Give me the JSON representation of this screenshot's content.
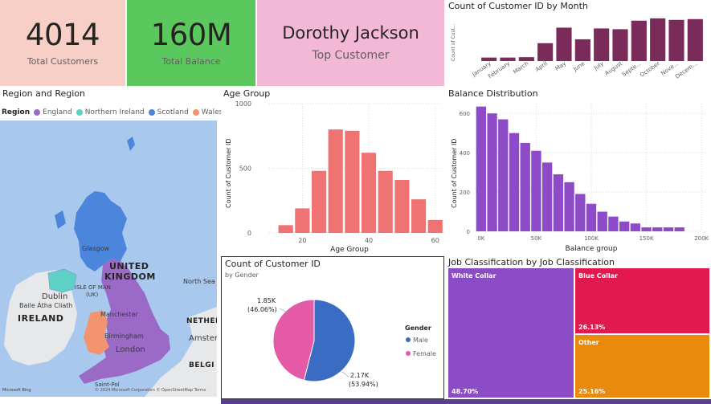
{
  "kpis": {
    "total_customers": {
      "value": "4014",
      "label": "Total Customers"
    },
    "total_balance": {
      "value": "160M",
      "label": "Total Balance"
    },
    "top_customer": {
      "value": "Dorothy Jackson",
      "label": "Top Customer"
    }
  },
  "colors": {
    "kpi1_bg": "#f8cfc6",
    "kpi2_bg": "#5bc85e",
    "kpi3_bg": "#f3b8d6",
    "month_bar": "#7a2b5a",
    "age_bar": "#f07373",
    "balance_bar": "#8e4bc8",
    "pie_male": "#3b6cc4",
    "pie_female": "#e55aa7",
    "treemap_white": "#8b4cc6",
    "treemap_blue": "#e2194f",
    "treemap_other": "#e98a0c",
    "england": "#9b6ac6",
    "northern_ireland": "#5ed1c6",
    "scotland": "#4c86dc",
    "wales": "#f2946f"
  },
  "month_chart": {
    "title": "Count of Customer ID by Month",
    "y_title": "Count of Cust...",
    "chart_data": {
      "type": "bar",
      "categories": [
        "January",
        "February",
        "March",
        "April",
        "May",
        "June",
        "July",
        "August",
        "Septe...",
        "October",
        "Nove...",
        "Decem..."
      ],
      "values": [
        45,
        45,
        50,
        230,
        430,
        280,
        420,
        410,
        520,
        550,
        530,
        540
      ],
      "ylim": [
        0,
        600
      ]
    }
  },
  "region_map": {
    "title": "Region and Region",
    "legend_title": "Region",
    "legend": [
      {
        "name": "England",
        "color": "#9b6ac6"
      },
      {
        "name": "Northern Ireland",
        "color": "#5ed1c6"
      },
      {
        "name": "Scotland",
        "color": "#4c86dc"
      },
      {
        "name": "Wales",
        "color": "#f2946f"
      }
    ],
    "labels": {
      "uk": "UNITED",
      "uk2": "KINGDOM",
      "glasgow": "Glasgow",
      "isle_of_man": "ISLE OF MAN",
      "isle_of_man2": "(UK)",
      "dublin": "Dublin",
      "baile": "Baile Átha Cliath",
      "ireland": "IRELAND",
      "manchester": "Manchester",
      "birmingham": "Birmingham",
      "london": "London",
      "north_sea": "North Sea",
      "nether": "NETHER",
      "amster": "Amster",
      "belgi": "BELGI",
      "saint_pol": "Saint-Pol",
      "bing": "Microsoft Bing",
      "copyright": "© 2024 Microsoft Corporation © OpenStreetMap Terms"
    }
  },
  "age_chart": {
    "title": "Age Group",
    "x_title": "Age Group",
    "y_title": "Count of Customer ID",
    "chart_data": {
      "type": "bar",
      "x": [
        15,
        20,
        25,
        30,
        35,
        40,
        45,
        50,
        55,
        60
      ],
      "values": [
        60,
        190,
        480,
        800,
        790,
        620,
        480,
        410,
        260,
        100
      ],
      "xlim": [
        10,
        62
      ],
      "ylim": [
        0,
        1000
      ],
      "xticks": [
        20,
        40,
        60
      ],
      "yticks": [
        0,
        500,
        1000
      ]
    }
  },
  "balance_chart": {
    "title": "Balance Distribution",
    "x_title": "Balance group",
    "y_title": "Count of Customer ID",
    "chart_data": {
      "type": "bar",
      "x": [
        0,
        10000,
        20000,
        30000,
        40000,
        50000,
        60000,
        70000,
        80000,
        90000,
        100000,
        110000,
        120000,
        130000,
        140000,
        150000,
        160000,
        170000,
        180000
      ],
      "values": [
        635,
        600,
        570,
        500,
        450,
        410,
        350,
        290,
        250,
        190,
        140,
        100,
        75,
        50,
        40,
        20,
        20,
        20,
        20
      ],
      "xlim": [
        -5000,
        205000
      ],
      "ylim": [
        0,
        650
      ],
      "xticks_labels": [
        "0K",
        "50K",
        "100K",
        "150K",
        "200K"
      ],
      "xticks": [
        0,
        50000,
        100000,
        150000,
        200000
      ],
      "yticks": [
        0,
        200,
        400,
        600
      ]
    }
  },
  "gender_chart": {
    "title": "Count of Customer ID",
    "subtitle": "by Gender",
    "legend_title": "Gender",
    "chart_data": {
      "type": "pie",
      "categories": [
        "Male",
        "Female"
      ],
      "values": [
        2170,
        1850
      ],
      "labels": [
        {
          "value": "2.17K",
          "pct": "(53.94%)"
        },
        {
          "value": "1.85K",
          "pct": "(46.06%)"
        }
      ]
    }
  },
  "job_chart": {
    "title": "Job Classification by Job Classification",
    "cells": [
      {
        "label": "White Collar",
        "pct": "48.70%"
      },
      {
        "label": "Blue Collar",
        "pct": "26.13%"
      },
      {
        "label": "Other",
        "pct": "25.16%"
      }
    ]
  }
}
